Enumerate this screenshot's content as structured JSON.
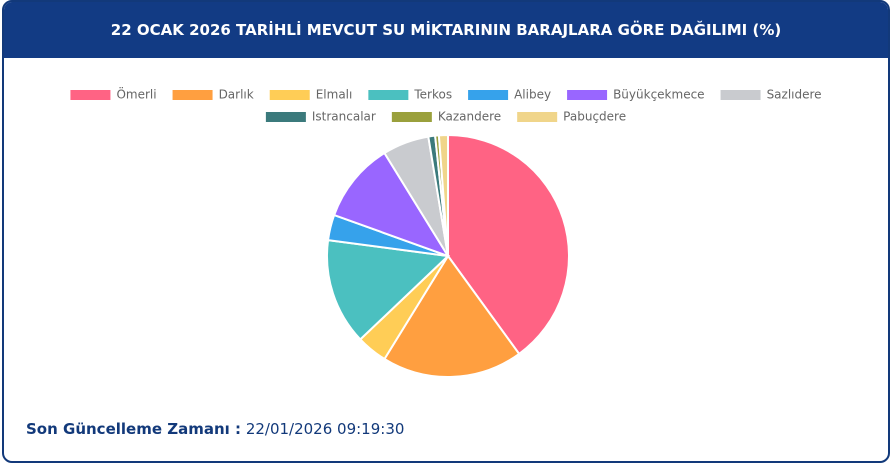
{
  "chart_data": {
    "type": "pie",
    "title": "22 OCAK 2026 TARİHLİ MEVCUT SU MİKTARININ BARAJLARA GÖRE DAĞILIMI (%)",
    "categories": [
      "Ömerli",
      "Darlık",
      "Elmalı",
      "Terkos",
      "Alibey",
      "Büyükçekmece",
      "Sazlıdere",
      "Istrancalar",
      "Kazandere",
      "Pabuçdere"
    ],
    "values": [
      40.0,
      18.8,
      4.1,
      14.2,
      3.4,
      10.7,
      6.2,
      0.9,
      0.5,
      1.2
    ],
    "colors": [
      "#ff6384",
      "#ff9f40",
      "#ffcd56",
      "#4bc0c0",
      "#36a2eb",
      "#9966ff",
      "#c9cbcf",
      "#3b7a7c",
      "#9aa03c",
      "#f0d58a"
    ],
    "legend": "top"
  },
  "footer": {
    "label": "Son Güncelleme Zamanı :",
    "time": "22/01/2026 09:19:30"
  }
}
